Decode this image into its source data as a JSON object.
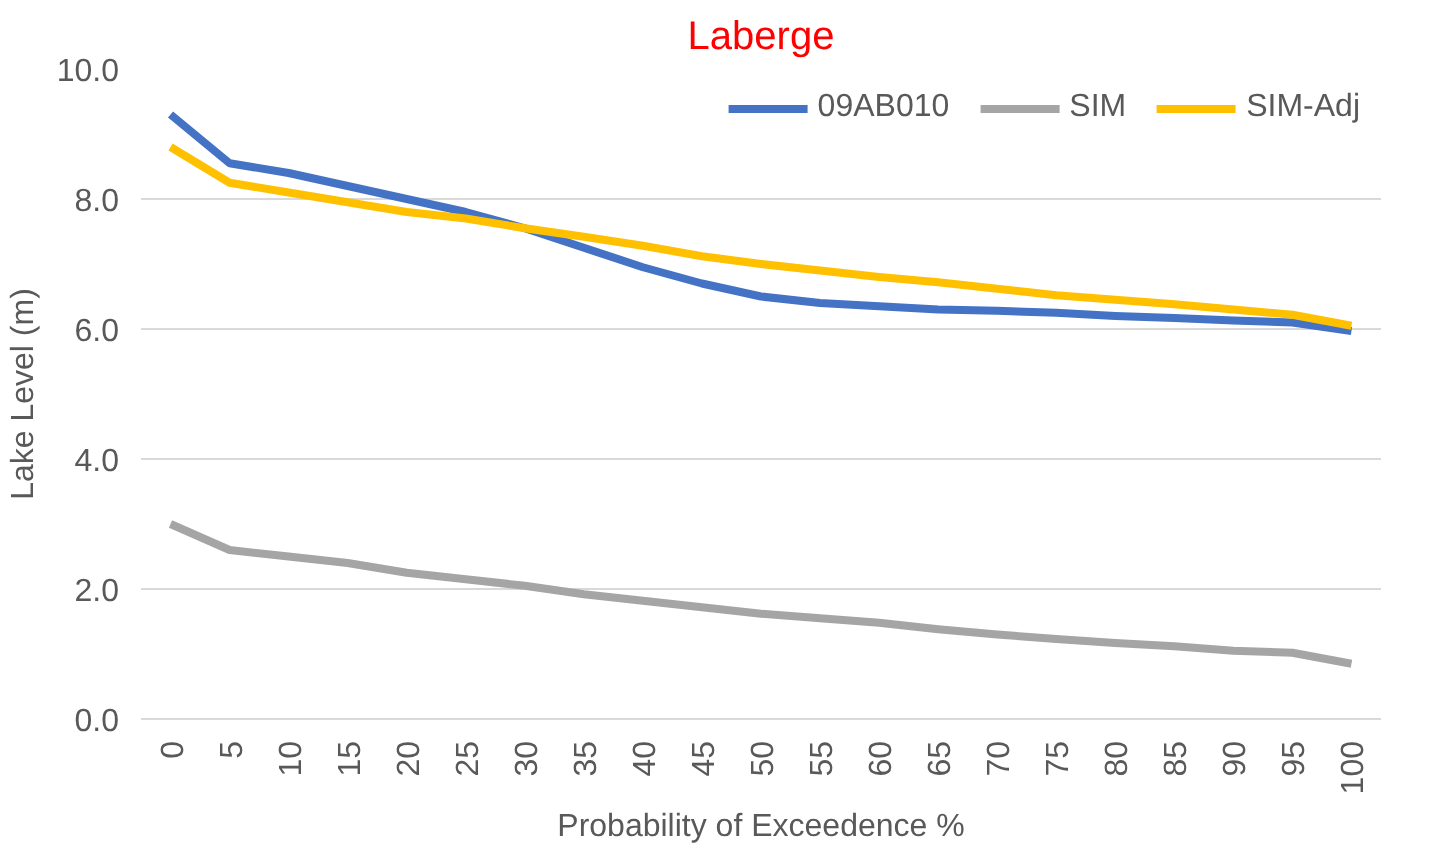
{
  "chart_data": {
    "type": "line",
    "title": "Laberge",
    "xlabel": "Probability of Exceedence %",
    "ylabel": "Lake Level (m)",
    "categories": [
      "0",
      "5",
      "10",
      "15",
      "20",
      "25",
      "30",
      "35",
      "40",
      "45",
      "50",
      "55",
      "60",
      "65",
      "70",
      "75",
      "80",
      "85",
      "90",
      "95",
      "100"
    ],
    "series": [
      {
        "name": "09AB010",
        "color": "#4472c4",
        "values": [
          9.3,
          8.55,
          8.4,
          8.2,
          8.0,
          7.8,
          7.55,
          7.25,
          6.95,
          6.7,
          6.5,
          6.4,
          6.35,
          6.3,
          6.28,
          6.25,
          6.2,
          6.17,
          6.13,
          6.1,
          5.97
        ]
      },
      {
        "name": "SIM",
        "color": "#a5a5a5",
        "values": [
          3.0,
          2.6,
          2.5,
          2.4,
          2.25,
          2.15,
          2.05,
          1.92,
          1.82,
          1.72,
          1.62,
          1.55,
          1.48,
          1.38,
          1.3,
          1.23,
          1.17,
          1.12,
          1.05,
          1.02,
          0.85
        ]
      },
      {
        "name": "SIM-Adj",
        "color": "#ffc000",
        "values": [
          8.8,
          8.25,
          8.1,
          7.95,
          7.8,
          7.7,
          7.55,
          7.42,
          7.28,
          7.12,
          7.0,
          6.9,
          6.8,
          6.72,
          6.62,
          6.52,
          6.45,
          6.38,
          6.3,
          6.22,
          6.05
        ]
      }
    ],
    "ylim": [
      0,
      10
    ],
    "yticks": [
      {
        "value": 0,
        "label": "0.0"
      },
      {
        "value": 2,
        "label": "2.0"
      },
      {
        "value": 4,
        "label": "4.0"
      },
      {
        "value": 6,
        "label": "6.0"
      },
      {
        "value": 8,
        "label": "8.0"
      },
      {
        "value": 10,
        "label": "10.0"
      }
    ],
    "grid": "y",
    "legend": "top right",
    "marker": "none",
    "line_style": "solid"
  }
}
